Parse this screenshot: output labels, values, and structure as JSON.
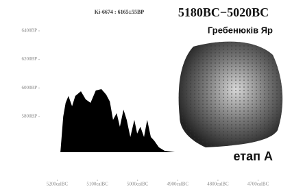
{
  "chart_data": {
    "type": "area",
    "title": "5180BC−5020BC",
    "subtitle": "Ki-6674 : 6165±55BP",
    "site": "Гребенюків Яр",
    "annotation": "етап А",
    "color": "#000000",
    "x": [
      5192,
      5185,
      5179,
      5172,
      5163,
      5155,
      5141,
      5129,
      5117,
      5104,
      5090,
      5078,
      5069,
      5061,
      5052,
      5044,
      5035,
      5027,
      5018,
      5008,
      5001,
      4993,
      4984,
      4976,
      4967,
      4959,
      4947,
      4933,
      4907
    ],
    "values": [
      5550,
      5800,
      5896,
      5944,
      5872,
      5944,
      5977,
      5920,
      5896,
      5982,
      5992,
      5953,
      5905,
      5776,
      5824,
      5728,
      5848,
      5776,
      5656,
      5776,
      5680,
      5728,
      5656,
      5776,
      5656,
      5632,
      5584,
      5560,
      5550
    ],
    "xlim": [
      5240,
      4660
    ],
    "xticks": [
      {
        "value": 5200,
        "label": "5200calBC"
      },
      {
        "value": 5100,
        "label": "5100calBC"
      },
      {
        "value": 5000,
        "label": "5000calBC"
      },
      {
        "value": 4900,
        "label": "4900calBC"
      },
      {
        "value": 4800,
        "label": "4800calBC"
      },
      {
        "value": 4700,
        "label": "4700calBC"
      }
    ],
    "ylim": [
      5550,
      6520
    ],
    "yticks": [
      {
        "value": 5800,
        "label": "5800BP"
      },
      {
        "value": 6000,
        "label": "6000BP"
      },
      {
        "value": 6200,
        "label": "6200BP"
      },
      {
        "value": 6400,
        "label": "6400BP"
      }
    ]
  }
}
